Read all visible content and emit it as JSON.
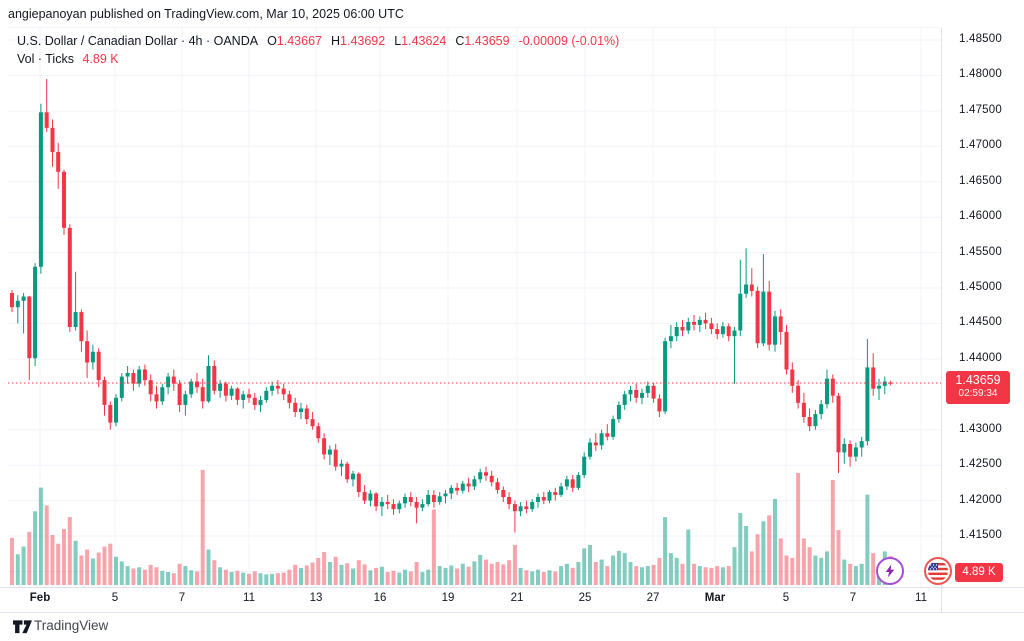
{
  "attribution": "angiepanoyan published on TradingView.com, Mar 10, 2025 06:00 UTC",
  "legend": {
    "symbol": "U.S. Dollar / Canadian Dollar · 4h · OANDA",
    "o_label": "O",
    "o_value": "1.43667",
    "h_label": "H",
    "h_value": "1.43692",
    "l_label": "L",
    "l_value": "1.43624",
    "c_label": "C",
    "c_value": "1.43659",
    "change": "-0.00009 (-0.01%)",
    "vol_label": "Vol · Ticks",
    "vol_value": "4.89 K"
  },
  "price_scale": {
    "labels": [
      "1.48500",
      "1.48000",
      "1.47500",
      "1.47000",
      "1.46500",
      "1.46000",
      "1.45500",
      "1.45000",
      "1.44500",
      "1.44000",
      "1.43000",
      "1.42500",
      "1.42000",
      "1.41500",
      "1.41000"
    ],
    "current_price": "1.43659",
    "countdown": "02:59:34",
    "volume_badge": "4.89 K"
  },
  "time_scale": {
    "ticks": [
      {
        "label": "Feb",
        "x": 40,
        "bold": true
      },
      {
        "label": "5",
        "x": 115,
        "bold": false
      },
      {
        "label": "7",
        "x": 182,
        "bold": false
      },
      {
        "label": "11",
        "x": 249,
        "bold": false
      },
      {
        "label": "13",
        "x": 316,
        "bold": false
      },
      {
        "label": "16",
        "x": 380,
        "bold": false
      },
      {
        "label": "19",
        "x": 448,
        "bold": false
      },
      {
        "label": "21",
        "x": 517,
        "bold": false
      },
      {
        "label": "25",
        "x": 585,
        "bold": false
      },
      {
        "label": "27",
        "x": 653,
        "bold": false
      },
      {
        "label": "Mar",
        "x": 715,
        "bold": true
      },
      {
        "label": "5",
        "x": 786,
        "bold": false
      },
      {
        "label": "7",
        "x": 853,
        "bold": false
      },
      {
        "label": "11",
        "x": 921,
        "bold": false
      }
    ]
  },
  "footer": {
    "brand": "TradingView"
  },
  "icons": {
    "lightning": "lightning-event-icon",
    "flag": "us-flag-event-icon"
  },
  "colors": {
    "up": "#089981",
    "down": "#f23645",
    "vol_up": "rgba(8,153,129,0.5)",
    "vol_down": "rgba(242,54,69,0.45)",
    "grid": "#f0f3fa",
    "badge": "#f23645"
  },
  "chart_data": {
    "type": "candlestick",
    "title": "U.S. Dollar / Canadian Dollar · 4h · OANDA",
    "volume_unit": "ticks",
    "current_price": 1.43659,
    "y_axis": {
      "max": 1.485,
      "min": 1.41,
      "step": 0.005
    },
    "x_ticks": [
      "Feb",
      "5",
      "7",
      "11",
      "13",
      "16",
      "19",
      "21",
      "25",
      "27",
      "Mar",
      "5",
      "7",
      "11"
    ],
    "legend_position": "top-left",
    "grid": true,
    "candles": [
      [
        1.4493,
        1.4497,
        1.4466,
        1.4473,
        8000
      ],
      [
        1.4473,
        1.449,
        1.445,
        1.4482,
        5200
      ],
      [
        1.4482,
        1.4493,
        1.4436,
        1.4488,
        6500
      ],
      [
        1.4488,
        1.4489,
        1.437,
        1.4401,
        9000
      ],
      [
        1.4401,
        1.4535,
        1.439,
        1.453,
        12500
      ],
      [
        1.453,
        1.476,
        1.452,
        1.4748,
        16500
      ],
      [
        1.4748,
        1.4795,
        1.472,
        1.4726,
        13500
      ],
      [
        1.4726,
        1.4738,
        1.4671,
        1.4692,
        8500
      ],
      [
        1.4692,
        1.4705,
        1.464,
        1.4664,
        7000
      ],
      [
        1.4664,
        1.4667,
        1.4575,
        1.4585,
        9500
      ],
      [
        1.4585,
        1.459,
        1.4438,
        1.4445,
        11500
      ],
      [
        1.4445,
        1.4523,
        1.444,
        1.4466,
        7500
      ],
      [
        1.4466,
        1.447,
        1.441,
        1.4425,
        5000
      ],
      [
        1.4425,
        1.444,
        1.4373,
        1.4395,
        6000
      ],
      [
        1.4395,
        1.442,
        1.4385,
        1.441,
        4500
      ],
      [
        1.441,
        1.4415,
        1.436,
        1.437,
        5500
      ],
      [
        1.437,
        1.4375,
        1.432,
        1.4335,
        6500
      ],
      [
        1.4335,
        1.434,
        1.43,
        1.431,
        7000
      ],
      [
        1.431,
        1.435,
        1.4305,
        1.4345,
        4800
      ],
      [
        1.4345,
        1.438,
        1.434,
        1.4375,
        4000
      ],
      [
        1.4375,
        1.439,
        1.4365,
        1.438,
        3200
      ],
      [
        1.438,
        1.4385,
        1.4355,
        1.4365,
        2800
      ],
      [
        1.4365,
        1.439,
        1.436,
        1.4385,
        3000
      ],
      [
        1.4385,
        1.4392,
        1.4362,
        1.437,
        2600
      ],
      [
        1.437,
        1.4378,
        1.434,
        1.435,
        3400
      ],
      [
        1.435,
        1.4362,
        1.433,
        1.434,
        3000
      ],
      [
        1.434,
        1.4365,
        1.4335,
        1.436,
        2400
      ],
      [
        1.436,
        1.438,
        1.435,
        1.4375,
        2200
      ],
      [
        1.4375,
        1.4385,
        1.4355,
        1.4365,
        2000
      ],
      [
        1.4365,
        1.437,
        1.4325,
        1.4335,
        3600
      ],
      [
        1.4335,
        1.4355,
        1.432,
        1.435,
        3200
      ],
      [
        1.435,
        1.4372,
        1.4345,
        1.4368,
        2500
      ],
      [
        1.4368,
        1.438,
        1.4352,
        1.436,
        2300
      ],
      [
        1.436,
        1.4372,
        1.433,
        1.434,
        19500
      ],
      [
        1.434,
        1.4405,
        1.4338,
        1.439,
        6000
      ],
      [
        1.439,
        1.4398,
        1.435,
        1.4355,
        4200
      ],
      [
        1.4355,
        1.437,
        1.4345,
        1.4365,
        3000
      ],
      [
        1.4365,
        1.4368,
        1.434,
        1.4348,
        2600
      ],
      [
        1.4348,
        1.4362,
        1.4342,
        1.4358,
        2200
      ],
      [
        1.4358,
        1.436,
        1.4335,
        1.4342,
        2400
      ],
      [
        1.4342,
        1.4355,
        1.433,
        1.435,
        2100
      ],
      [
        1.435,
        1.4358,
        1.4338,
        1.4345,
        1900
      ],
      [
        1.4345,
        1.4352,
        1.4328,
        1.4335,
        2300
      ],
      [
        1.4335,
        1.4348,
        1.4325,
        1.4342,
        2000
      ],
      [
        1.4342,
        1.436,
        1.4338,
        1.4355,
        1800
      ],
      [
        1.4355,
        1.4368,
        1.4348,
        1.4362,
        1900
      ],
      [
        1.4362,
        1.437,
        1.435,
        1.4358,
        2000
      ],
      [
        1.4358,
        1.4365,
        1.4342,
        1.435,
        2100
      ],
      [
        1.435,
        1.4355,
        1.433,
        1.4338,
        2600
      ],
      [
        1.4338,
        1.4345,
        1.4318,
        1.4325,
        3400
      ],
      [
        1.4325,
        1.4338,
        1.4315,
        1.433,
        2900
      ],
      [
        1.433,
        1.4335,
        1.4308,
        1.4315,
        3300
      ],
      [
        1.4315,
        1.4325,
        1.43,
        1.4305,
        3800
      ],
      [
        1.4305,
        1.431,
        1.4282,
        1.4288,
        4600
      ],
      [
        1.4288,
        1.4295,
        1.4258,
        1.4265,
        5600
      ],
      [
        1.4265,
        1.4278,
        1.425,
        1.4272,
        3900
      ],
      [
        1.4272,
        1.428,
        1.4242,
        1.4248,
        4800
      ],
      [
        1.4248,
        1.4258,
        1.4235,
        1.4252,
        3400
      ],
      [
        1.4252,
        1.4255,
        1.4225,
        1.423,
        3700
      ],
      [
        1.423,
        1.4242,
        1.422,
        1.4238,
        2800
      ],
      [
        1.4238,
        1.424,
        1.4205,
        1.4212,
        4200
      ],
      [
        1.4212,
        1.4222,
        1.4195,
        1.42,
        3500
      ],
      [
        1.42,
        1.4215,
        1.4192,
        1.421,
        2500
      ],
      [
        1.421,
        1.4212,
        1.4185,
        1.4192,
        2900
      ],
      [
        1.4192,
        1.4205,
        1.4178,
        1.4198,
        3100
      ],
      [
        1.4198,
        1.4208,
        1.4188,
        1.4195,
        2200
      ],
      [
        1.4195,
        1.4202,
        1.418,
        1.4188,
        2400
      ],
      [
        1.4188,
        1.42,
        1.4182,
        1.4196,
        2100
      ],
      [
        1.4196,
        1.421,
        1.419,
        1.4205,
        2600
      ],
      [
        1.4205,
        1.4212,
        1.4192,
        1.4198,
        2300
      ],
      [
        1.4198,
        1.4205,
        1.4168,
        1.419,
        3900
      ],
      [
        1.419,
        1.4202,
        1.4185,
        1.4195,
        2200
      ],
      [
        1.4195,
        1.4215,
        1.4192,
        1.4208,
        2600
      ],
      [
        1.4208,
        1.4215,
        1.419,
        1.4198,
        12800
      ],
      [
        1.4198,
        1.4212,
        1.4194,
        1.4206,
        3200
      ],
      [
        1.4206,
        1.4215,
        1.4196,
        1.421,
        2900
      ],
      [
        1.421,
        1.4222,
        1.4202,
        1.4218,
        3300
      ],
      [
        1.4218,
        1.4225,
        1.4208,
        1.4214,
        2800
      ],
      [
        1.4214,
        1.4228,
        1.421,
        1.4224,
        3600
      ],
      [
        1.4224,
        1.4232,
        1.4212,
        1.422,
        3100
      ],
      [
        1.422,
        1.4235,
        1.4215,
        1.423,
        4000
      ],
      [
        1.423,
        1.4245,
        1.4225,
        1.424,
        5100
      ],
      [
        1.424,
        1.4248,
        1.4228,
        1.4235,
        4300
      ],
      [
        1.4235,
        1.4242,
        1.422,
        1.4226,
        3600
      ],
      [
        1.4226,
        1.4232,
        1.421,
        1.4215,
        3900
      ],
      [
        1.4215,
        1.422,
        1.4198,
        1.4205,
        3500
      ],
      [
        1.4205,
        1.4212,
        1.4188,
        1.4195,
        4200
      ],
      [
        1.4195,
        1.42,
        1.4155,
        1.4185,
        6800
      ],
      [
        1.4185,
        1.4198,
        1.4178,
        1.4192,
        2900
      ],
      [
        1.4192,
        1.42,
        1.4182,
        1.4188,
        2500
      ],
      [
        1.4188,
        1.4202,
        1.4184,
        1.4198,
        2300
      ],
      [
        1.4198,
        1.421,
        1.419,
        1.4205,
        2600
      ],
      [
        1.4205,
        1.4212,
        1.4195,
        1.42,
        2200
      ],
      [
        1.42,
        1.4215,
        1.4196,
        1.4212,
        2500
      ],
      [
        1.4212,
        1.4218,
        1.42,
        1.4208,
        2300
      ],
      [
        1.4208,
        1.4225,
        1.4205,
        1.422,
        3200
      ],
      [
        1.422,
        1.4235,
        1.4215,
        1.423,
        3600
      ],
      [
        1.423,
        1.4236,
        1.4212,
        1.4218,
        2900
      ],
      [
        1.4218,
        1.424,
        1.4215,
        1.4236,
        3900
      ],
      [
        1.4236,
        1.4268,
        1.4232,
        1.4262,
        6200
      ],
      [
        1.4262,
        1.4288,
        1.4258,
        1.4282,
        6800
      ],
      [
        1.4282,
        1.4295,
        1.427,
        1.4278,
        3900
      ],
      [
        1.4278,
        1.43,
        1.4272,
        1.4295,
        4300
      ],
      [
        1.4295,
        1.4308,
        1.4285,
        1.429,
        3200
      ],
      [
        1.429,
        1.432,
        1.4286,
        1.4315,
        5000
      ],
      [
        1.4315,
        1.434,
        1.431,
        1.4335,
        5800
      ],
      [
        1.4335,
        1.4355,
        1.4328,
        1.435,
        5400
      ],
      [
        1.435,
        1.4362,
        1.434,
        1.4356,
        3900
      ],
      [
        1.4356,
        1.4365,
        1.4338,
        1.4345,
        3200
      ],
      [
        1.4345,
        1.4358,
        1.4336,
        1.4352,
        3000
      ],
      [
        1.4352,
        1.4368,
        1.4345,
        1.4362,
        3200
      ],
      [
        1.4362,
        1.4366,
        1.4338,
        1.4344,
        3400
      ],
      [
        1.4344,
        1.435,
        1.4318,
        1.4326,
        4600
      ],
      [
        1.4326,
        1.443,
        1.4322,
        1.4425,
        11500
      ],
      [
        1.4425,
        1.4448,
        1.4415,
        1.4432,
        5400
      ],
      [
        1.4432,
        1.4452,
        1.4425,
        1.4445,
        4600
      ],
      [
        1.4445,
        1.4455,
        1.4432,
        1.444,
        3600
      ],
      [
        1.444,
        1.4458,
        1.4435,
        1.4452,
        9400
      ],
      [
        1.4452,
        1.4462,
        1.444,
        1.4448,
        3600
      ],
      [
        1.4448,
        1.446,
        1.4438,
        1.4455,
        3200
      ],
      [
        1.4455,
        1.4465,
        1.4442,
        1.445,
        3000
      ],
      [
        1.445,
        1.4458,
        1.4435,
        1.4442,
        2900
      ],
      [
        1.4442,
        1.445,
        1.4428,
        1.4435,
        3200
      ],
      [
        1.4435,
        1.4452,
        1.443,
        1.4446,
        3000
      ],
      [
        1.4446,
        1.445,
        1.4425,
        1.4432,
        3200
      ],
      [
        1.4432,
        1.4445,
        1.4365,
        1.444,
        6400
      ],
      [
        1.444,
        1.454,
        1.4432,
        1.4492,
        12200
      ],
      [
        1.4492,
        1.4556,
        1.4486,
        1.4505,
        10000
      ],
      [
        1.4505,
        1.4528,
        1.4488,
        1.4496,
        5700
      ],
      [
        1.4496,
        1.4502,
        1.4415,
        1.4422,
        8600
      ],
      [
        1.4422,
        1.4548,
        1.4418,
        1.4495,
        10800
      ],
      [
        1.4495,
        1.451,
        1.4412,
        1.442,
        11800
      ],
      [
        1.442,
        1.4468,
        1.441,
        1.446,
        14600
      ],
      [
        1.446,
        1.447,
        1.442,
        1.4438,
        7900
      ],
      [
        1.4438,
        1.4448,
        1.4378,
        1.4385,
        5000
      ],
      [
        1.4385,
        1.4395,
        1.4352,
        1.4362,
        4600
      ],
      [
        1.4362,
        1.437,
        1.433,
        1.4338,
        19000
      ],
      [
        1.4338,
        1.4352,
        1.431,
        1.4318,
        7900
      ],
      [
        1.4318,
        1.433,
        1.4298,
        1.4305,
        6400
      ],
      [
        1.4305,
        1.4328,
        1.43,
        1.4322,
        5000
      ],
      [
        1.4322,
        1.4342,
        1.4315,
        1.4336,
        4600
      ],
      [
        1.4336,
        1.4385,
        1.433,
        1.4372,
        5700
      ],
      [
        1.4372,
        1.4378,
        1.4338,
        1.4348,
        17800
      ],
      [
        1.4348,
        1.4352,
        1.4239,
        1.4268,
        9300
      ],
      [
        1.4268,
        1.4288,
        1.4252,
        1.428,
        4300
      ],
      [
        1.428,
        1.4285,
        1.4248,
        1.4262,
        3600
      ],
      [
        1.4262,
        1.4282,
        1.4255,
        1.4275,
        3200
      ],
      [
        1.4275,
        1.429,
        1.4262,
        1.4284,
        3600
      ],
      [
        1.4284,
        1.4428,
        1.4278,
        1.4388,
        15300
      ],
      [
        1.4388,
        1.4408,
        1.4348,
        1.4358,
        5400
      ],
      [
        1.4358,
        1.4372,
        1.4342,
        1.4362,
        3200
      ],
      [
        1.4362,
        1.4375,
        1.435,
        1.4368,
        5700
      ],
      [
        1.43667,
        1.43692,
        1.43624,
        1.43659,
        4890
      ]
    ]
  }
}
